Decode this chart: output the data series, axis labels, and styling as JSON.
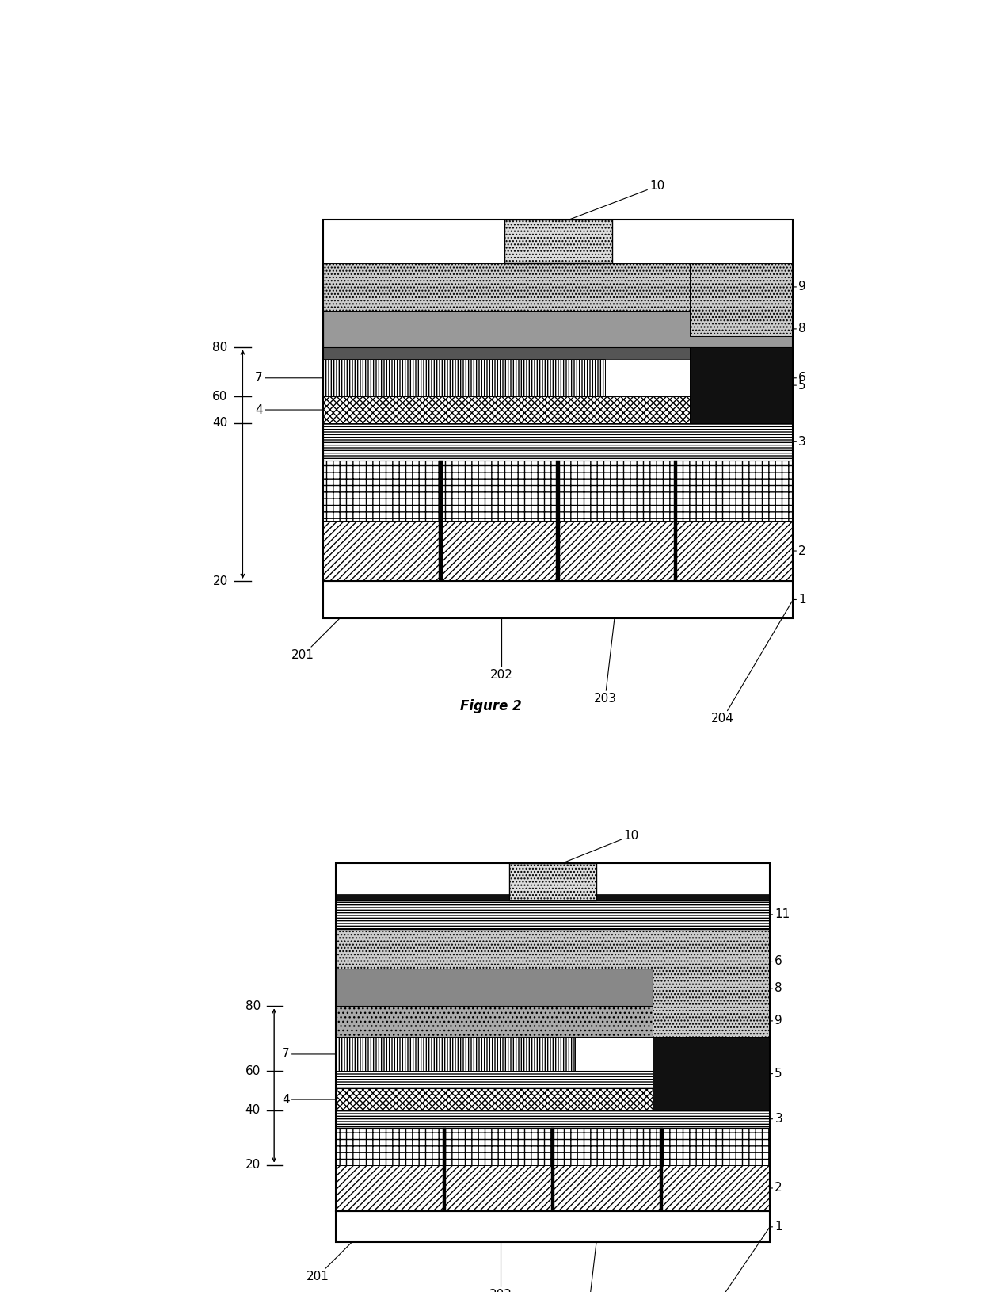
{
  "bg": "#ffffff",
  "lw_border": 1.5,
  "lw_inner": 0.8,
  "lfs": 11,
  "tfs": 12
}
